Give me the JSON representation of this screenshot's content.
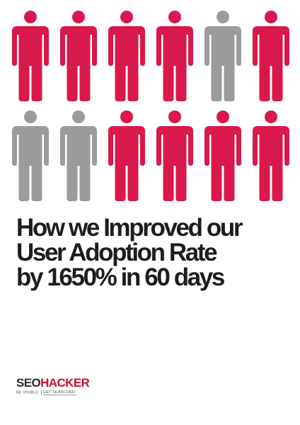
{
  "colors": {
    "highlight": "#d9184b",
    "muted": "#9b9b9b",
    "text": "#1d1d1b",
    "brand_red": "#c8102e"
  },
  "people_grid": {
    "rows": [
      [
        "highlight",
        "highlight",
        "highlight",
        "highlight",
        "muted",
        "highlight"
      ],
      [
        "muted",
        "muted",
        "highlight",
        "highlight",
        "highlight",
        "highlight"
      ]
    ],
    "icon": "person-icon"
  },
  "headline": {
    "line1": "How we Improved our",
    "line2": "User Adoption Rate",
    "line3": "by 1650%  in 60 days"
  },
  "logo": {
    "brand_left": "SEO",
    "brand_right": "HACKER",
    "tagline_left": "BE VISIBLE.",
    "tagline_right": "GET SEARCHED."
  }
}
